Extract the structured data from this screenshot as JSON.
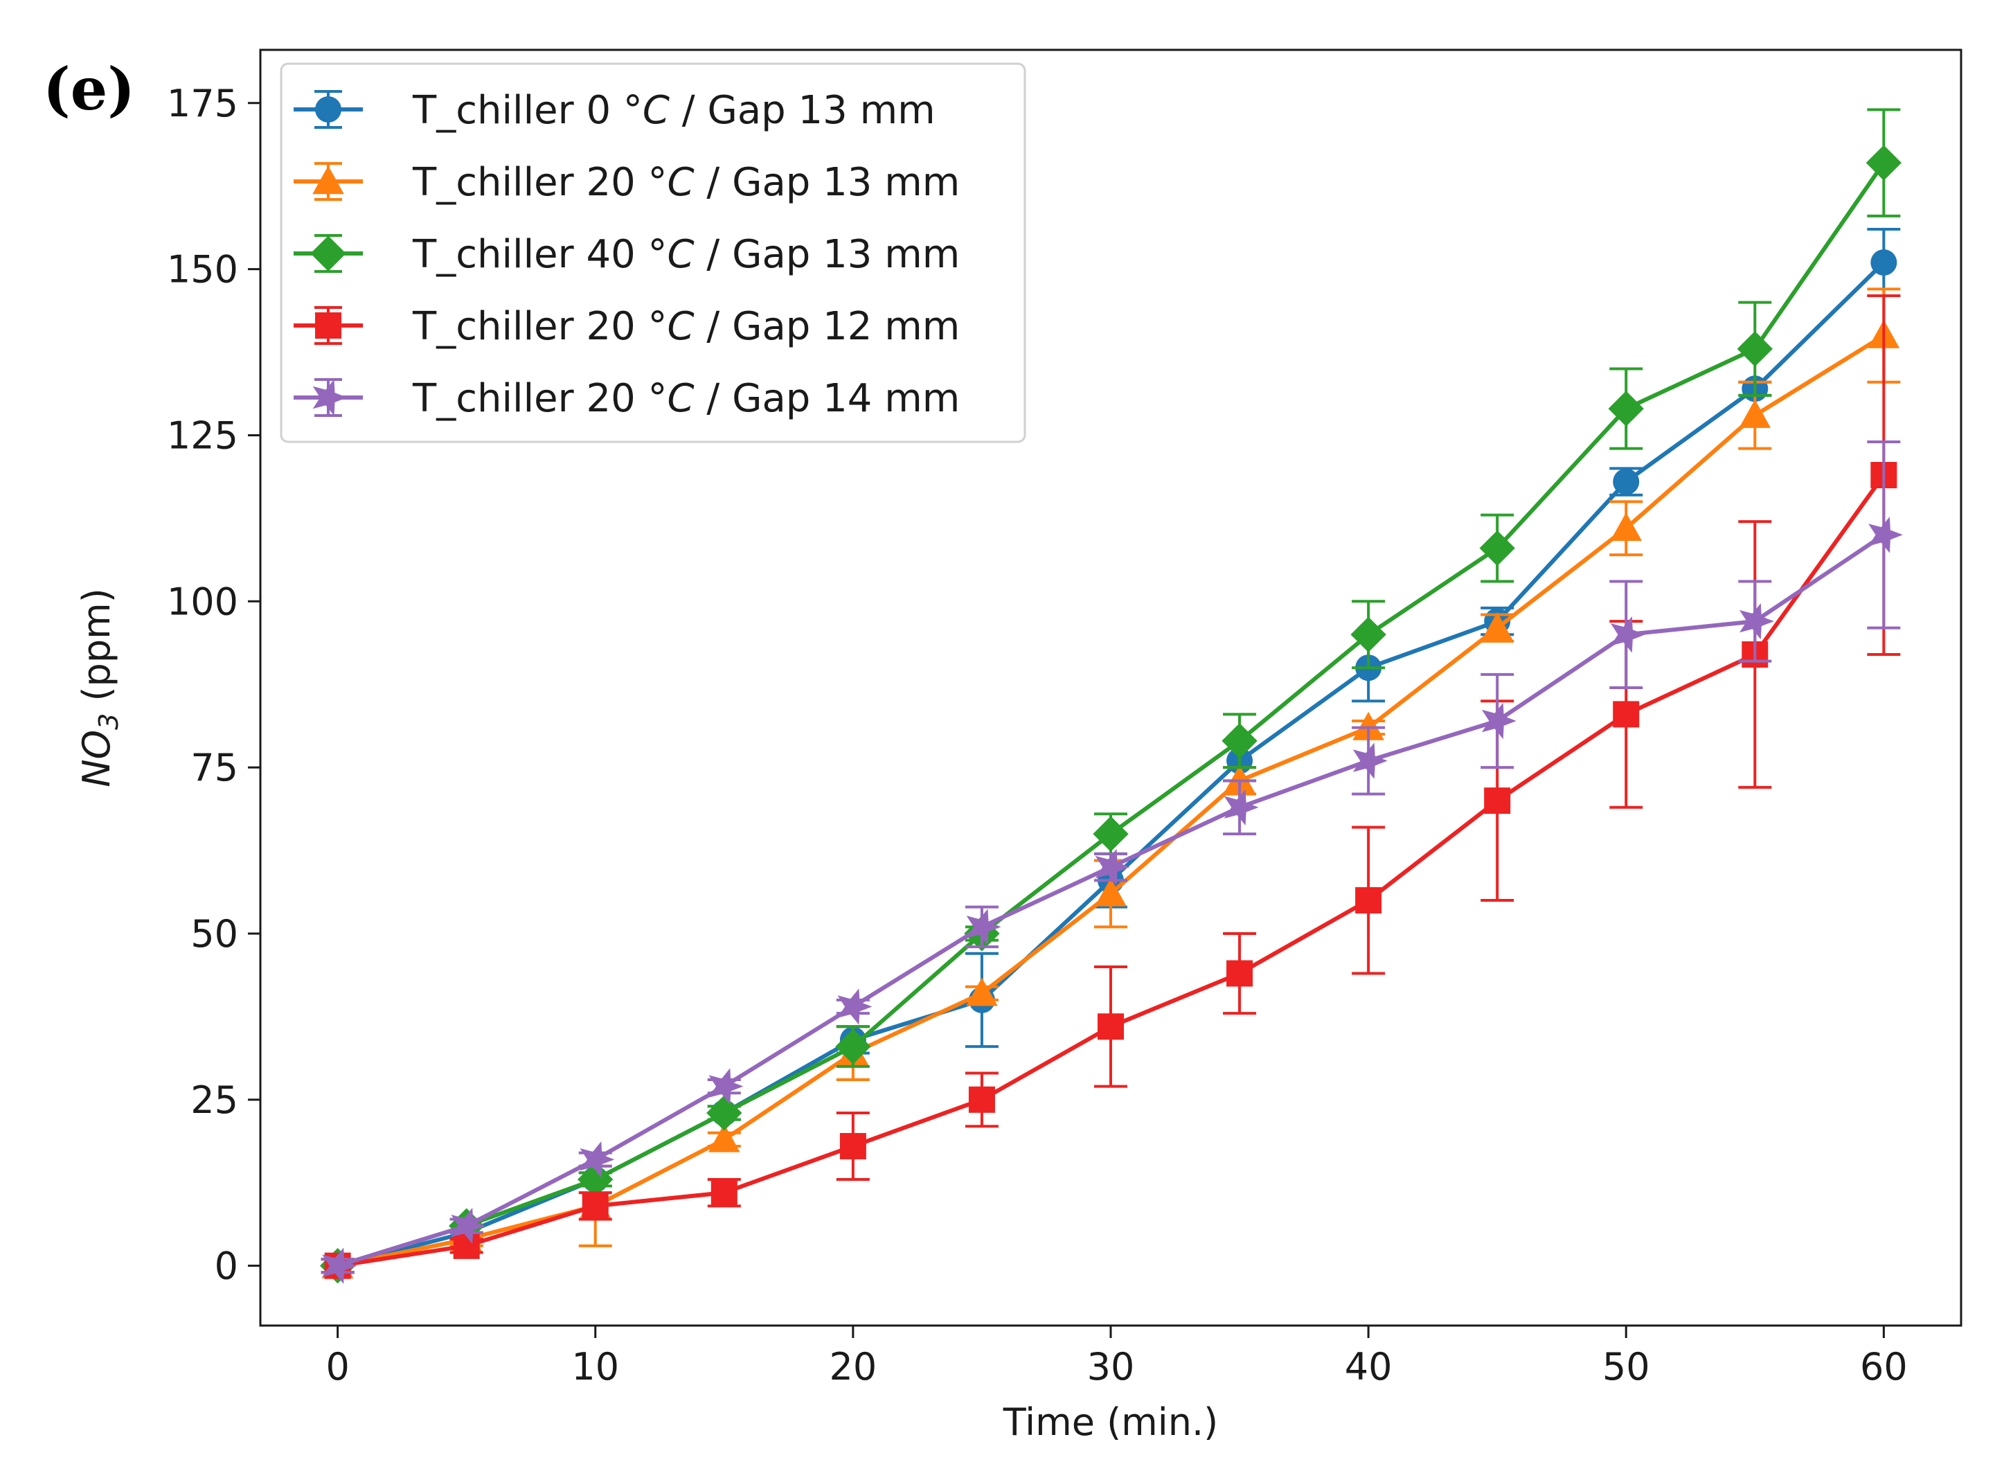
{
  "panel_label": "(e)",
  "chart_data": {
    "type": "line",
    "title": "",
    "xlabel": "Time (min.)",
    "ylabel_main": "NO",
    "ylabel_sub": "3",
    "ylabel_tail": " (ppm)",
    "xlim": [
      -3,
      63
    ],
    "ylim": [
      -9,
      183
    ],
    "xticks": [
      0,
      10,
      20,
      30,
      40,
      50,
      60
    ],
    "yticks": [
      0,
      25,
      50,
      75,
      100,
      125,
      150,
      175
    ],
    "legend_position": "top-left",
    "x": [
      0,
      5,
      10,
      15,
      20,
      25,
      30,
      35,
      40,
      45,
      50,
      55,
      60
    ],
    "series": [
      {
        "name": "T_chiller 0 °C / Gap 13 mm",
        "label_prefix": "T_chiller 0 ",
        "label_unit": "°C",
        "label_suffix": " / Gap 13 mm",
        "color": "#1f77b4",
        "marker": "circle",
        "values": [
          0,
          5,
          13,
          23,
          34,
          40,
          58,
          76,
          90,
          97,
          118,
          132,
          151
        ],
        "errors": [
          1,
          1,
          1,
          1,
          2,
          7,
          4,
          3,
          5,
          2,
          2,
          1,
          5
        ]
      },
      {
        "name": "T_chiller 20 °C / Gap 13 mm",
        "label_prefix": "T_chiller 20 ",
        "label_unit": "°C",
        "label_suffix": " / Gap 13 mm",
        "color": "#ff7f0e",
        "marker": "triangle",
        "values": [
          0,
          4,
          9,
          19,
          32,
          41,
          56,
          73,
          81,
          96,
          111,
          128,
          140
        ],
        "errors": [
          1,
          1,
          6,
          1,
          4,
          1,
          5,
          2,
          1,
          2,
          4,
          5,
          7
        ]
      },
      {
        "name": "T_chiller 40 °C / Gap 13 mm",
        "label_prefix": "T_chiller 40 ",
        "label_unit": "°C",
        "label_suffix": " / Gap 13 mm",
        "color": "#2ca02c",
        "marker": "diamond",
        "values": [
          0,
          6,
          13,
          23,
          33,
          50,
          65,
          79,
          95,
          108,
          129,
          138,
          166
        ],
        "errors": [
          1,
          1,
          1,
          1,
          3,
          1,
          3,
          4,
          5,
          5,
          6,
          7,
          8
        ]
      },
      {
        "name": "T_chiller 20 °C / Gap 12 mm",
        "label_prefix": "T_chiller 20 ",
        "label_unit": "°C",
        "label_suffix": " / Gap 12 mm",
        "color": "#ee2222",
        "marker": "square",
        "values": [
          0,
          3,
          9,
          11,
          18,
          25,
          36,
          44,
          55,
          70,
          83,
          92,
          119
        ],
        "errors": [
          1,
          1,
          2,
          2,
          5,
          4,
          9,
          6,
          11,
          15,
          14,
          20,
          27
        ]
      },
      {
        "name": "T_chiller 20 °C / Gap 14 mm",
        "label_prefix": "T_chiller 20 ",
        "label_unit": "°C",
        "label_suffix": " / Gap 14 mm",
        "color": "#9467bd",
        "marker": "star",
        "values": [
          0,
          6,
          16,
          27,
          39,
          51,
          60,
          69,
          76,
          82,
          95,
          97,
          110
        ],
        "errors": [
          1,
          1,
          1,
          1,
          1,
          3,
          2,
          4,
          5,
          7,
          8,
          6,
          14
        ]
      }
    ]
  }
}
